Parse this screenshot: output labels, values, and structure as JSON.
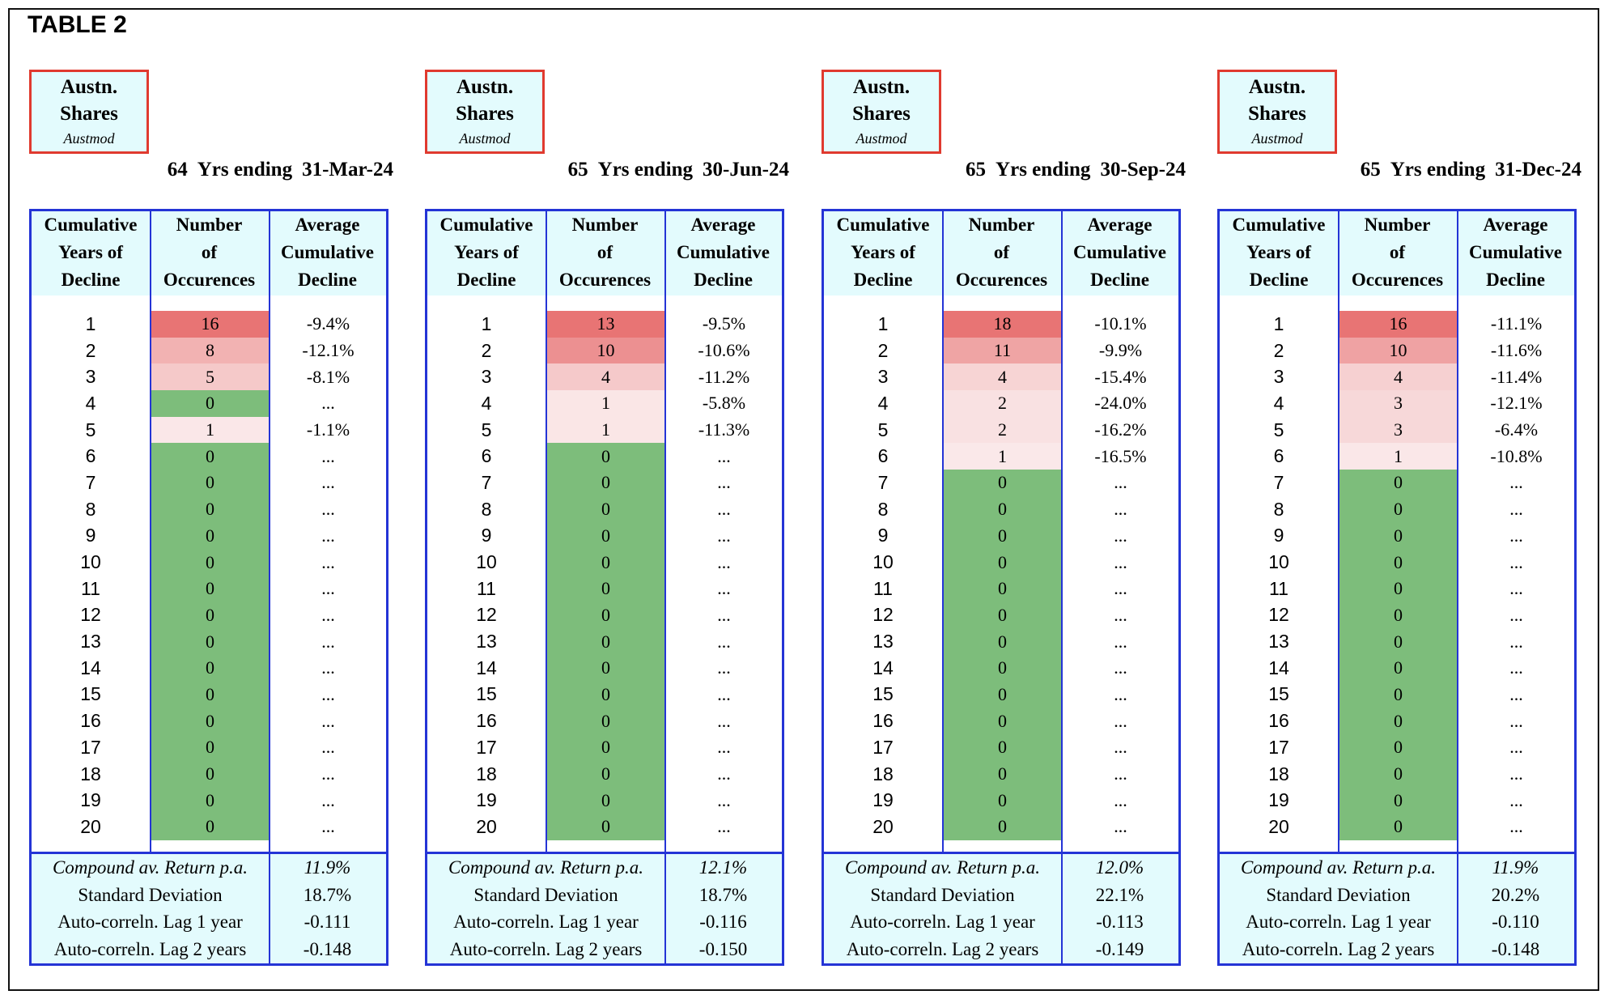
{
  "title": "TABLE 2",
  "logo": {
    "line1": "Austn.",
    "line2": "Shares",
    "sub": "Austmod"
  },
  "labels": {
    "yrs_ending": "Yrs ending"
  },
  "headers": {
    "col1": [
      "Cumulative",
      "Years of",
      "Decline"
    ],
    "col2": [
      "Number",
      "of",
      "Occurences"
    ],
    "col3": [
      "Average",
      "Cumulative",
      "Decline"
    ]
  },
  "summary_labels": {
    "car": "Compound av. Return p.a.",
    "sd": "Standard Deviation",
    "ac1": "Auto-correln. Lag 1 year",
    "ac2": "Auto-correln. Lag 2 years"
  },
  "colors": {
    "green": "#7dbd7b",
    "header_bg": "#e3fbfd",
    "border_blue": "#2434d6",
    "logo_red": "#e03a2f"
  },
  "panels": [
    {
      "years": "64",
      "date": "31-Mar-24",
      "counts": [
        16,
        8,
        5,
        0,
        1,
        0,
        0,
        0,
        0,
        0,
        0,
        0,
        0,
        0,
        0,
        0,
        0,
        0,
        0,
        0
      ],
      "avgs": [
        "-9.4%",
        "-12.1%",
        "-8.1%",
        "...",
        "-1.1%",
        "...",
        "...",
        "...",
        "...",
        "...",
        "...",
        "...",
        "...",
        "...",
        "...",
        "...",
        "...",
        "...",
        "...",
        "..."
      ],
      "car": "11.9%",
      "sd": "18.7%",
      "ac1": "-0.111",
      "ac2": "-0.148"
    },
    {
      "years": "65",
      "date": "30-Jun-24",
      "counts": [
        13,
        10,
        4,
        1,
        1,
        0,
        0,
        0,
        0,
        0,
        0,
        0,
        0,
        0,
        0,
        0,
        0,
        0,
        0,
        0
      ],
      "avgs": [
        "-9.5%",
        "-10.6%",
        "-11.2%",
        "-5.8%",
        "-11.3%",
        "...",
        "...",
        "...",
        "...",
        "...",
        "...",
        "...",
        "...",
        "...",
        "...",
        "...",
        "...",
        "...",
        "...",
        "..."
      ],
      "car": "12.1%",
      "sd": "18.7%",
      "ac1": "-0.116",
      "ac2": "-0.150"
    },
    {
      "years": "65",
      "date": "30-Sep-24",
      "counts": [
        18,
        11,
        4,
        2,
        2,
        1,
        0,
        0,
        0,
        0,
        0,
        0,
        0,
        0,
        0,
        0,
        0,
        0,
        0,
        0
      ],
      "avgs": [
        "-10.1%",
        "-9.9%",
        "-15.4%",
        "-24.0%",
        "-16.2%",
        "-16.5%",
        "...",
        "...",
        "...",
        "...",
        "...",
        "...",
        "...",
        "...",
        "...",
        "...",
        "...",
        "...",
        "...",
        "..."
      ],
      "car": "12.0%",
      "sd": "22.1%",
      "ac1": "-0.113",
      "ac2": "-0.149"
    },
    {
      "years": "65",
      "date": "31-Dec-24",
      "counts": [
        16,
        10,
        4,
        3,
        3,
        1,
        0,
        0,
        0,
        0,
        0,
        0,
        0,
        0,
        0,
        0,
        0,
        0,
        0,
        0
      ],
      "avgs": [
        "-11.1%",
        "-11.6%",
        "-11.4%",
        "-12.1%",
        "-6.4%",
        "-10.8%",
        "...",
        "...",
        "...",
        "...",
        "...",
        "...",
        "...",
        "...",
        "...",
        "...",
        "...",
        "...",
        "...",
        "..."
      ],
      "car": "11.9%",
      "sd": "20.2%",
      "ac1": "-0.110",
      "ac2": "-0.148"
    }
  ]
}
